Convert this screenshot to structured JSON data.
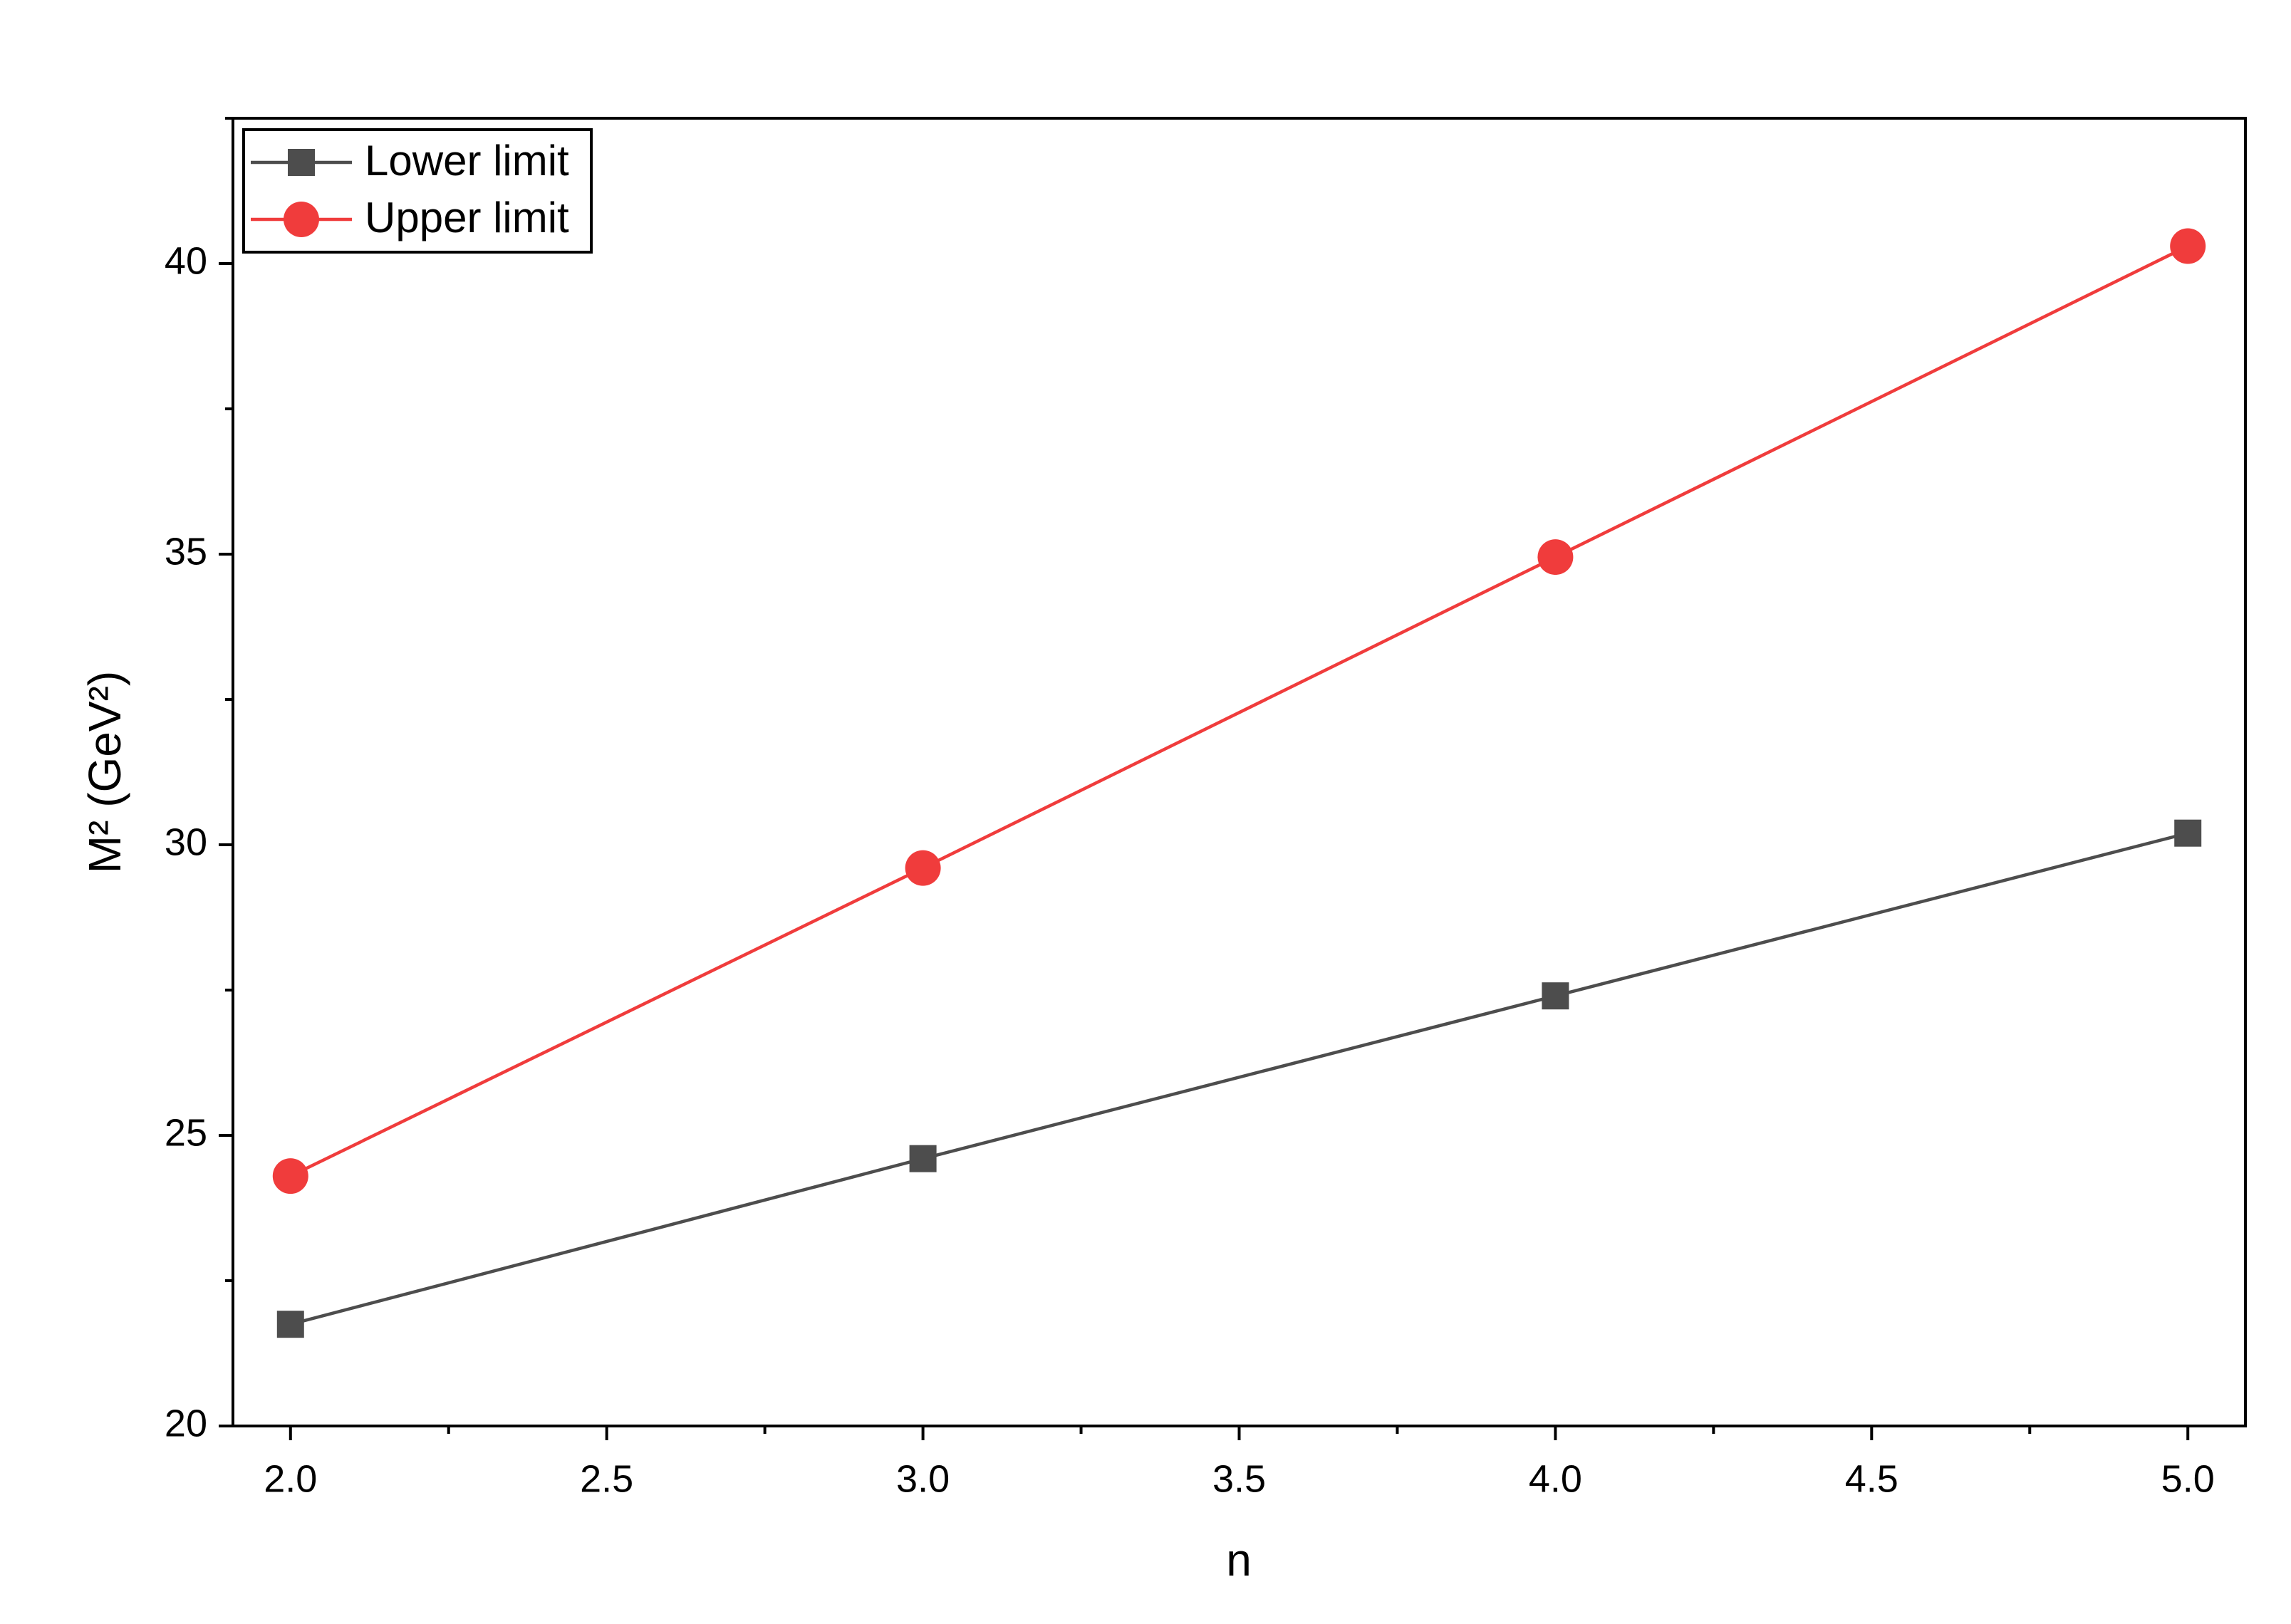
{
  "chart_data": {
    "type": "line",
    "x_label": "n",
    "y_label": "M² (GeV²)",
    "x": [
      2,
      3,
      4,
      5
    ],
    "series": [
      {
        "name": "Lower limit",
        "color": "#4d4d4d",
        "marker": "square",
        "values": [
          21.75,
          24.6,
          27.4,
          30.2
        ]
      },
      {
        "name": "Upper limit",
        "color": "#f03c3c",
        "marker": "circle",
        "values": [
          24.3,
          29.6,
          34.95,
          40.3
        ]
      }
    ],
    "xlim": [
      1.909,
      5.091
    ],
    "ylim": [
      20,
      42.5
    ],
    "xticks": [
      {
        "value": 2,
        "label": "2.0"
      },
      {
        "value": 2.5,
        "label": "2.5"
      },
      {
        "value": 3,
        "label": "3.0"
      },
      {
        "value": 3.5,
        "label": "3.5"
      },
      {
        "value": 4,
        "label": "4.0"
      },
      {
        "value": 4.5,
        "label": "4.5"
      },
      {
        "value": 5,
        "label": "5.0"
      }
    ],
    "xminorticks": [
      2.25,
      2.75,
      3.25,
      3.75,
      4.25,
      4.75
    ],
    "yticks": [
      20,
      25,
      30,
      35,
      40
    ],
    "yminorticks": [
      22.5,
      27.5,
      32.5,
      37.5,
      42.5
    ],
    "grid": false,
    "legend": "upper left"
  }
}
